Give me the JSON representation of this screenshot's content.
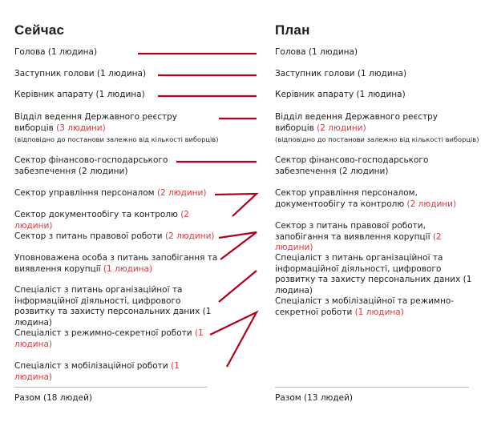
{
  "colors": {
    "accent": "#d9383c",
    "connector": "#b3001b",
    "text": "#1d1d1b"
  },
  "current": {
    "title": "Сейчас",
    "items": [
      {
        "text": "Голова (1 людина)"
      },
      {
        "text": "Заступник голови (1 людина)"
      },
      {
        "text": "Керівник апарату (1 людина)"
      },
      {
        "text": "Відділ ведення Державного реєстру виборців ",
        "count": "(3 людини)",
        "note": "(відповідно до постанови залежно від кількості виборців)"
      },
      {
        "text": "Сектор фінансово-господарського забезпечення (2 людини)"
      },
      {
        "text": "Сектор управління персоналом ",
        "count": "(2 людини)"
      },
      {
        "text": "Сектор документообігу та контролю ",
        "count": "(2 людини)"
      },
      {
        "text": "Сектор з питань правової роботи ",
        "count": "(2 людини)"
      },
      {
        "text": "Уповноважена особа з питань запобігання та виявлення корупції ",
        "count": "(1 людина)"
      },
      {
        "text": "Спеціаліст з питань організаційної та інформаційної діяльності, цифрового розвитку та захисту персональних даних (1 людина)"
      },
      {
        "text": "Спеціаліст з режимно-секретної роботи ",
        "count": "(1 людина)"
      },
      {
        "text": "Спеціаліст з мобілізаційної роботи ",
        "count": "(1 людина)"
      }
    ],
    "total": "Разом (18 людей)"
  },
  "plan": {
    "title": "План",
    "items": [
      {
        "text": "Голова (1 людина)"
      },
      {
        "text": "Заступник голови (1 людина)"
      },
      {
        "text": "Керівник апарату (1 людина)"
      },
      {
        "text": "Відділ ведення Державного реєстру виборців ",
        "count": "(2 людини)",
        "note": "(відповідно до постанови залежно від кількості виборців)"
      },
      {
        "text": "Сектор фінансово-господарського забезпечення (2 людини)"
      },
      {
        "text": "Сектор управління персоналом, документообігу та контролю ",
        "count": "(2 людини)"
      },
      {
        "text": "Сектор з питань правової роботи, запобігання та виявлення корупції ",
        "count": "(2 людини)"
      },
      {
        "text": "Спеціаліст з питань організаційної та інформаційної діяльності, цифрового розвитку та захисту персональних даних (1 людина)"
      },
      {
        "text": "Спеціаліст з мобілізаційної та режимно-секретної роботи ",
        "count": "(1 людина)"
      }
    ],
    "total": "Разом (13 людей)"
  }
}
